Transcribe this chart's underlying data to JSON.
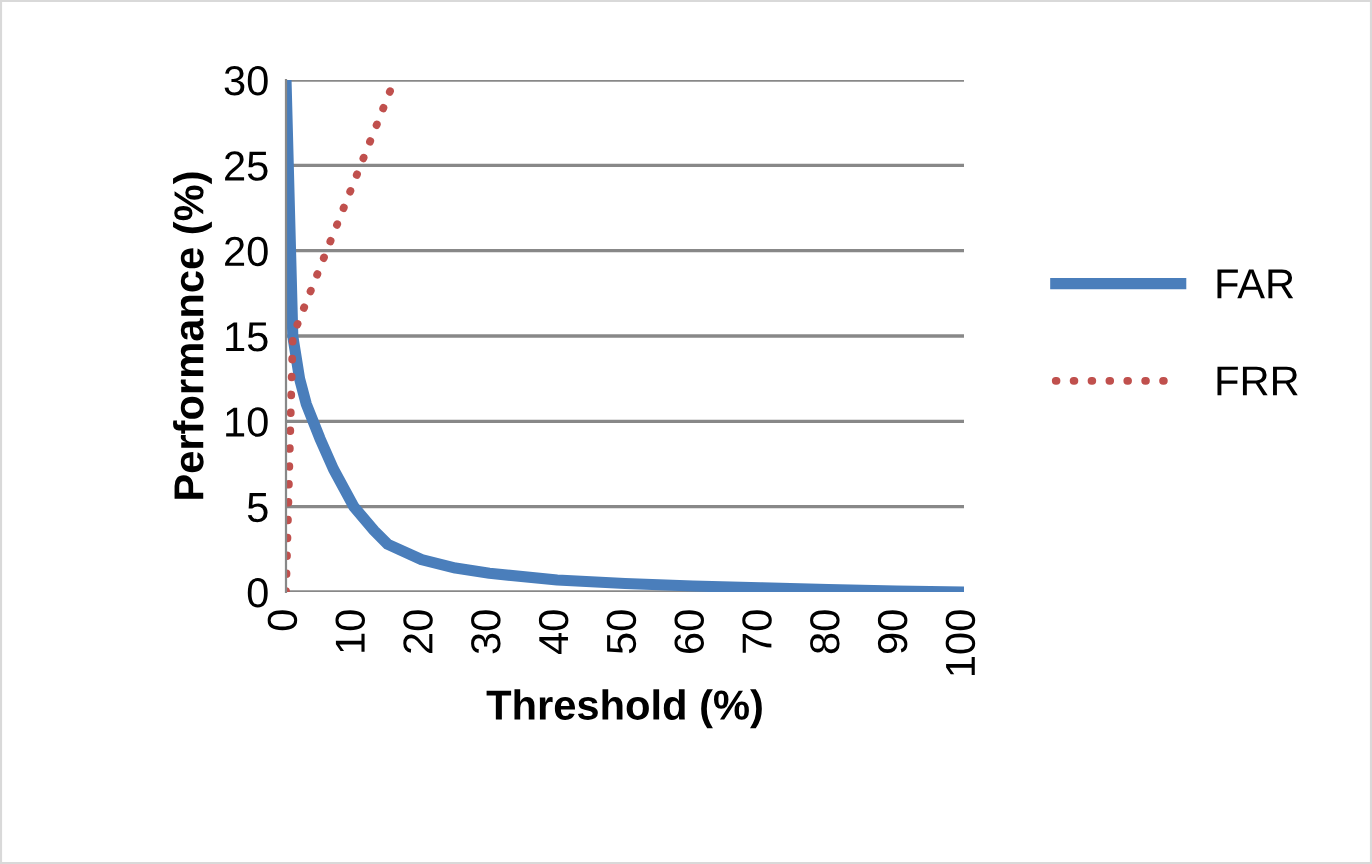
{
  "chart_data": {
    "type": "line",
    "xlabel": "Threshold (%)",
    "ylabel": "Performance (%)",
    "xlim": [
      0,
      100
    ],
    "xticks": [
      0,
      10,
      20,
      30,
      40,
      50,
      60,
      70,
      80,
      90,
      100
    ],
    "ylim": [
      0,
      30
    ],
    "yticks": [
      0,
      5,
      10,
      15,
      20,
      25,
      30
    ],
    "grid": "y",
    "legend": "right",
    "marker": "none",
    "series": [
      {
        "name": "FAR",
        "color": "#4a7ebb",
        "line_style": "solid",
        "x": [
          0,
          1,
          2,
          3,
          5,
          7,
          10,
          13,
          15,
          20,
          25,
          30,
          40,
          50,
          60,
          70,
          80,
          90,
          100
        ],
        "values": [
          30,
          15,
          12.5,
          11,
          9,
          7.2,
          5,
          3.6,
          2.8,
          1.9,
          1.4,
          1.1,
          0.7,
          0.5,
          0.35,
          0.25,
          0.15,
          0.05,
          0
        ]
      },
      {
        "name": "FRR",
        "color": "#c0504d",
        "line_style": "dotted",
        "x": [
          0,
          1,
          16
        ],
        "values": [
          0,
          15,
          30
        ]
      }
    ]
  }
}
